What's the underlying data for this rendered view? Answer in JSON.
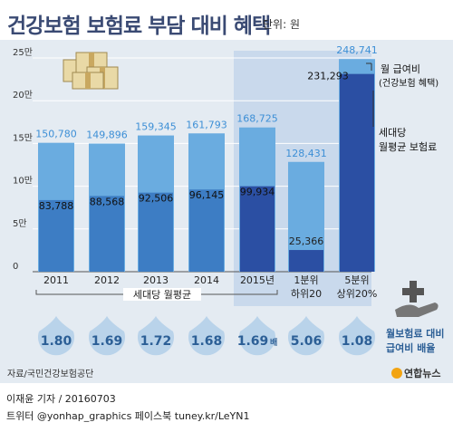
{
  "title": "건강보험 보험료 부담 대비 혜택",
  "unit": "단위: 원",
  "chart_data": {
    "type": "bar",
    "categories": [
      "2011",
      "2012",
      "2013",
      "2014",
      "2015년",
      "1분위",
      "5분위"
    ],
    "category_sublabels": [
      "",
      "",
      "",
      "",
      "",
      "하위20",
      "상위20%"
    ],
    "ylim": [
      0,
      250000
    ],
    "y_tick_labels": [
      "0",
      "5만",
      "10만",
      "15만",
      "20만",
      "25만"
    ],
    "y_tick_values": [
      0,
      50000,
      100000,
      150000,
      200000,
      250000
    ],
    "series": [
      {
        "name": "월 급여비 (건강보험 혜택)",
        "values": [
          150780,
          149896,
          159345,
          161793,
          168725,
          128431,
          248741
        ],
        "labels": [
          "150,780",
          "149,896",
          "159,345",
          "161,793",
          "168,725",
          "128,431",
          "248,741"
        ]
      },
      {
        "name": "세대당 월평균 보험료",
        "values": [
          83788,
          88568,
          92506,
          96145,
          99934,
          25366,
          231293
        ],
        "labels": [
          "83,788",
          "88,568",
          "92,506",
          "96,145",
          "99,934",
          "25,366",
          "231,293"
        ]
      }
    ],
    "legend": {
      "benefit_line1": "월 급여비",
      "benefit_line2": "(건강보험 혜택)",
      "premium_line1": "세대당",
      "premium_line2": "월평균 보험료"
    },
    "group_label": "세대당 월평균",
    "ratio_label_line1": "월보험료 대비",
    "ratio_label_line2": "급여비 배율",
    "ratios": [
      "1.80",
      "1.69",
      "1.72",
      "1.68",
      "1.69",
      "5.06",
      "1.08"
    ],
    "ratio_suffix": "배",
    "colors": {
      "benefit_light": "#6aace0",
      "premium_mid": "#3d7dc4",
      "premium_dark": "#2b4fa3",
      "highlight_bg": "#c9d9ec",
      "label_blue": "#3d8fd6"
    }
  },
  "source": "자료/국민건강보험공단",
  "logo": "연합뉴스",
  "credits": {
    "line1": "이재윤 기자 / 20160703",
    "line2": "트위터 @yonhap_graphics  페이스북 tuney.kr/LeYN1"
  }
}
